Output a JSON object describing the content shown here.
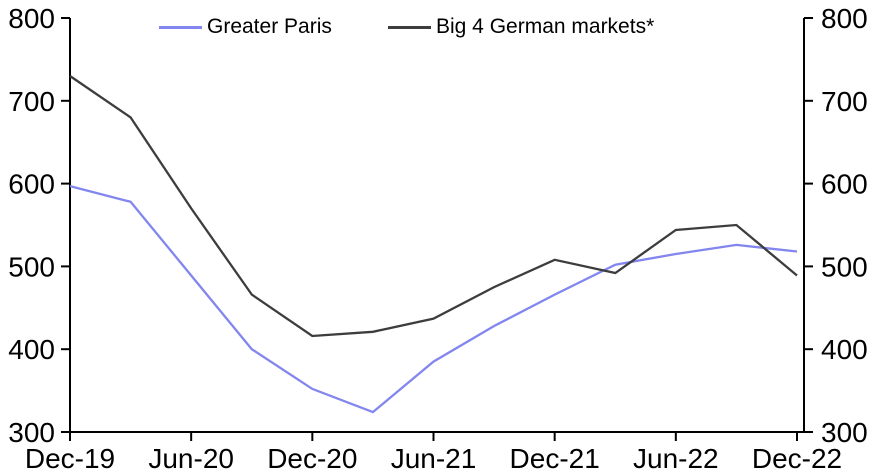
{
  "chart_data": {
    "type": "line",
    "title": "",
    "xlabel": "",
    "ylabel": "",
    "categories": [
      "Dec-19",
      "Mar-20",
      "Jun-20",
      "Sep-20",
      "Dec-20",
      "Mar-21",
      "Jun-21",
      "Sep-21",
      "Dec-21",
      "Mar-22",
      "Jun-22",
      "Sep-22",
      "Dec-22"
    ],
    "x_tick_labels": [
      "Dec-19",
      "Jun-20",
      "Dec-20",
      "Jun-21",
      "Dec-21",
      "Jun-22",
      "Dec-22"
    ],
    "x_tick_every": 2,
    "y_tick_labels": [
      "300",
      "400",
      "500",
      "600",
      "700",
      "800"
    ],
    "ylim": [
      300,
      800
    ],
    "y_axis_sides": "both",
    "grid": false,
    "legend_position": "top",
    "series": [
      {
        "name": "Greater Paris",
        "color": "#8286ee",
        "values": [
          597,
          578,
          489,
          400,
          352,
          324,
          385,
          428,
          466,
          502,
          515,
          526,
          518
        ]
      },
      {
        "name": "Big 4 German markets*",
        "color": "#3d3d3d",
        "values": [
          730,
          680,
          570,
          466,
          416,
          421,
          437,
          475,
          508,
          492,
          544,
          550,
          489
        ]
      }
    ]
  },
  "legend": {
    "items": [
      {
        "label": "Greater Paris"
      },
      {
        "label": "Big 4 German markets*"
      }
    ]
  }
}
